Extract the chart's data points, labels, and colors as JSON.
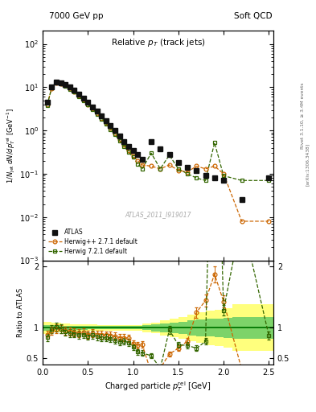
{
  "title_left": "7000 GeV pp",
  "title_right": "Soft QCD",
  "panel_title": "Relative p_{T} (track jets)",
  "xlabel": "Charged particle p_{T}^{rel} [GeV]",
  "ylabel_main": "1/N_{jet} dN/dp_{T}^{rel} [GeV^{-1}]",
  "ylabel_ratio": "Ratio to ATLAS",
  "watermark": "ATLAS_2011_I919017",
  "atlas_x": [
    0.05,
    0.1,
    0.15,
    0.2,
    0.25,
    0.3,
    0.35,
    0.4,
    0.45,
    0.5,
    0.55,
    0.6,
    0.65,
    0.7,
    0.75,
    0.8,
    0.85,
    0.9,
    0.95,
    1.0,
    1.05,
    1.1,
    1.2,
    1.3,
    1.4,
    1.5,
    1.6,
    1.7,
    1.8,
    1.9,
    2.0,
    2.2,
    2.5
  ],
  "atlas_y": [
    4.5,
    10.0,
    13.0,
    12.5,
    11.5,
    10.0,
    8.5,
    7.0,
    5.5,
    4.5,
    3.5,
    2.8,
    2.2,
    1.7,
    1.3,
    1.0,
    0.75,
    0.55,
    0.42,
    0.35,
    0.28,
    0.22,
    0.55,
    0.38,
    0.28,
    0.18,
    0.14,
    0.12,
    0.09,
    0.08,
    0.07,
    0.025,
    0.08
  ],
  "herwig1_x": [
    0.05,
    0.1,
    0.15,
    0.2,
    0.25,
    0.3,
    0.35,
    0.4,
    0.45,
    0.5,
    0.55,
    0.6,
    0.65,
    0.7,
    0.75,
    0.8,
    0.85,
    0.9,
    0.95,
    1.0,
    1.05,
    1.1,
    1.2,
    1.3,
    1.4,
    1.5,
    1.6,
    1.7,
    1.8,
    1.9,
    2.0,
    2.2,
    2.5
  ],
  "herwig1_y": [
    4.0,
    9.5,
    12.8,
    12.2,
    11.0,
    9.4,
    7.9,
    6.4,
    5.1,
    4.0,
    3.2,
    2.5,
    1.95,
    1.5,
    1.14,
    0.86,
    0.63,
    0.46,
    0.35,
    0.26,
    0.2,
    0.16,
    0.15,
    0.13,
    0.16,
    0.12,
    0.11,
    0.15,
    0.13,
    0.15,
    0.1,
    0.008,
    0.008
  ],
  "herwig2_x": [
    0.05,
    0.1,
    0.15,
    0.2,
    0.25,
    0.3,
    0.35,
    0.4,
    0.45,
    0.5,
    0.55,
    0.6,
    0.65,
    0.7,
    0.75,
    0.8,
    0.85,
    0.9,
    0.95,
    1.0,
    1.05,
    1.1,
    1.2,
    1.3,
    1.4,
    1.5,
    1.6,
    1.7,
    1.8,
    1.9,
    2.0,
    2.2,
    2.5
  ],
  "herwig2_y": [
    3.8,
    9.8,
    13.2,
    12.3,
    10.8,
    9.1,
    7.7,
    6.2,
    4.9,
    3.9,
    3.1,
    2.4,
    1.85,
    1.42,
    1.07,
    0.8,
    0.58,
    0.43,
    0.32,
    0.24,
    0.17,
    0.13,
    0.3,
    0.13,
    0.27,
    0.13,
    0.1,
    0.08,
    0.07,
    0.52,
    0.09,
    0.07,
    0.07
  ],
  "herwig1_color": "#cc6600",
  "herwig2_color": "#336600",
  "atlas_color": "#111111",
  "band_yellow": "#ffff66",
  "band_green": "#66cc66",
  "xlim": [
    0.0,
    2.55
  ],
  "ylim_main": [
    0.001,
    200.0
  ],
  "ylim_ratio": [
    0.4,
    2.1
  ],
  "band_xedges": [
    0.0,
    0.1,
    0.2,
    0.3,
    0.4,
    0.5,
    0.6,
    0.7,
    0.8,
    0.9,
    1.0,
    1.1,
    1.2,
    1.3,
    1.4,
    1.5,
    1.6,
    1.7,
    1.8,
    1.9,
    2.0,
    2.1,
    2.55
  ],
  "band_yellow_lo": [
    0.9,
    0.92,
    0.93,
    0.94,
    0.945,
    0.948,
    0.95,
    0.95,
    0.95,
    0.95,
    0.95,
    0.93,
    0.91,
    0.88,
    0.85,
    0.82,
    0.78,
    0.75,
    0.72,
    0.7,
    0.68,
    0.62,
    0.55
  ],
  "band_yellow_hi": [
    1.1,
    1.08,
    1.07,
    1.06,
    1.055,
    1.052,
    1.05,
    1.05,
    1.05,
    1.05,
    1.05,
    1.07,
    1.09,
    1.12,
    1.15,
    1.18,
    1.22,
    1.25,
    1.28,
    1.3,
    1.32,
    1.38,
    1.45
  ],
  "band_green_lo": [
    0.95,
    0.96,
    0.965,
    0.97,
    0.972,
    0.974,
    0.975,
    0.975,
    0.975,
    0.975,
    0.975,
    0.96,
    0.945,
    0.93,
    0.915,
    0.9,
    0.88,
    0.865,
    0.855,
    0.845,
    0.84,
    0.82,
    0.8
  ],
  "band_green_hi": [
    1.05,
    1.04,
    1.035,
    1.03,
    1.028,
    1.026,
    1.025,
    1.025,
    1.025,
    1.025,
    1.025,
    1.04,
    1.055,
    1.07,
    1.085,
    1.1,
    1.12,
    1.135,
    1.145,
    1.155,
    1.16,
    1.18,
    1.2
  ]
}
